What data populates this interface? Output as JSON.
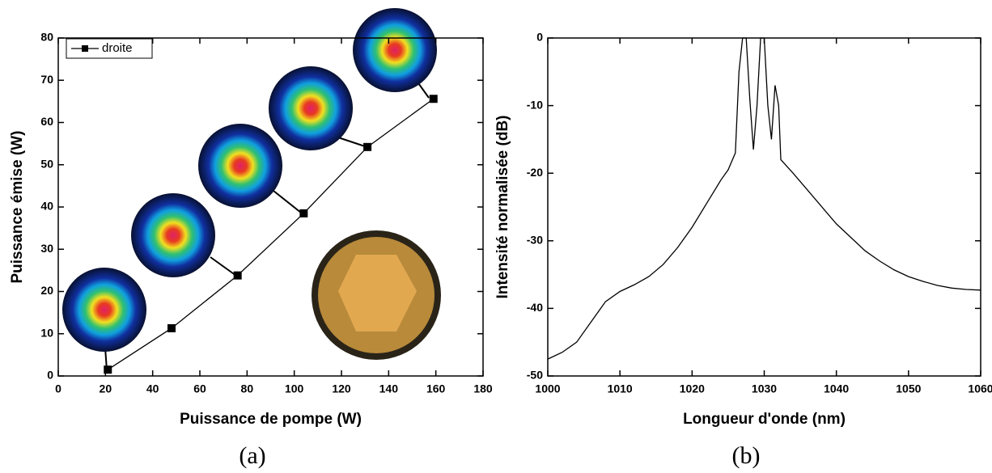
{
  "chart_data": [
    {
      "type": "line",
      "subtitle": "(a)",
      "x_label": "Puissance de pompe (W)",
      "y_label": "Puissance émise (W)",
      "x": [
        21,
        48,
        76,
        104,
        131,
        159
      ],
      "series": [
        {
          "name": "droite",
          "color": "#000000",
          "values": [
            1.5,
            11.3,
            23.8,
            38.5,
            54.2,
            65.6
          ]
        }
      ],
      "markers": "square",
      "legend": "upper left",
      "xlim": [
        0,
        180
      ],
      "xticks": [
        0,
        20,
        40,
        60,
        80,
        100,
        120,
        140,
        160,
        180
      ],
      "ylim": [
        0,
        80
      ],
      "yticks": [
        0,
        10,
        20,
        30,
        40,
        50,
        60,
        70,
        80
      ]
    },
    {
      "type": "line",
      "subtitle": "(b)",
      "x_label": "Longueur d'onde (nm)",
      "y_label": "Intensité normalisée (dB)",
      "x": [
        1000,
        1002,
        1004,
        1006,
        1008,
        1010,
        1012,
        1014,
        1016,
        1018,
        1020,
        1022,
        1024,
        1025,
        1026,
        1026.5,
        1027,
        1027.5,
        1028,
        1028.5,
        1029,
        1029.5,
        1030,
        1030.5,
        1031,
        1031.5,
        1032,
        1032.3,
        1034,
        1036,
        1038,
        1040,
        1042,
        1044,
        1046,
        1048,
        1050,
        1052,
        1054,
        1056,
        1058,
        1060
      ],
      "series": [
        {
          "color": "#000000",
          "values": [
            -47.5,
            -46.5,
            -45,
            -42,
            -39,
            -37.5,
            -36.5,
            -35.3,
            -33.5,
            -31,
            -28,
            -24.5,
            -21,
            -19.5,
            -17,
            -5,
            0,
            0,
            -9,
            -16.5,
            -10,
            0,
            0,
            -10,
            -15,
            -7,
            -10,
            -18,
            -20,
            -22.5,
            -25,
            -27.5,
            -29.5,
            -31.5,
            -33,
            -34.3,
            -35.3,
            -36,
            -36.6,
            -37,
            -37.2,
            -37.3
          ]
        }
      ],
      "xlim": [
        1000,
        1060
      ],
      "xticks": [
        1000,
        1010,
        1020,
        1030,
        1040,
        1050,
        1060
      ],
      "ylim": [
        -50,
        0
      ],
      "yticks": [
        -50,
        -40,
        -30,
        -20,
        -10,
        0
      ]
    }
  ]
}
